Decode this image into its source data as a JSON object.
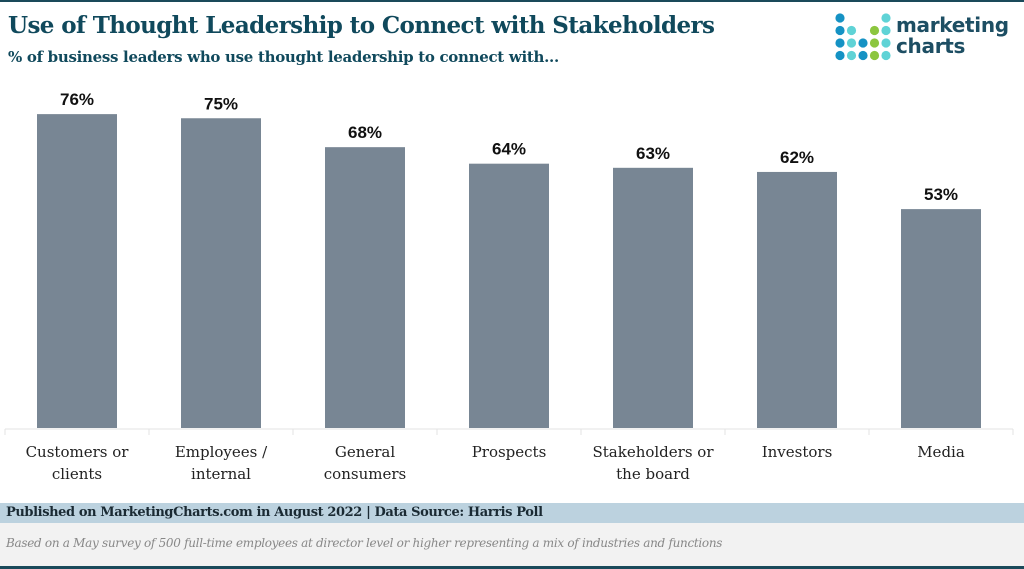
{
  "header": {
    "title": "Use of Thought Leadership to Connect with Stakeholders",
    "subtitle": "% of business leaders who use thought leadership to connect with..."
  },
  "logo": {
    "line1": "marketing",
    "line2": "charts",
    "icon": "dot-grid-logo-icon",
    "colors": {
      "blue": "#1592c4",
      "teal": "#5fd3d6",
      "green": "#8cc63f",
      "text": "#1d4e63"
    }
  },
  "chart_data": {
    "type": "bar",
    "title": "Use of Thought Leadership to Connect with Stakeholders",
    "subtitle": "% of business leaders who use thought leadership to connect with...",
    "categories": [
      [
        "Customers or",
        "clients"
      ],
      [
        "Employees /",
        "internal"
      ],
      [
        "General",
        "consumers"
      ],
      [
        "Prospects"
      ],
      [
        "Stakeholders or",
        "the board"
      ],
      [
        "Investors"
      ],
      [
        "Media"
      ]
    ],
    "values": [
      76,
      75,
      68,
      64,
      63,
      62,
      53
    ],
    "value_labels": [
      "76%",
      "75%",
      "68%",
      "64%",
      "63%",
      "62%",
      "53%"
    ],
    "xlabel": "",
    "ylabel": "",
    "ylim": [
      0,
      100
    ],
    "grid": false,
    "legend": "none",
    "bar_color": "#788694"
  },
  "footer": {
    "source": "Published on MarketingCharts.com in August 2022 | Data Source: Harris Poll",
    "note": "Based on a May survey of 500 full-time employees at director level or higher representing a mix of industries and functions"
  }
}
